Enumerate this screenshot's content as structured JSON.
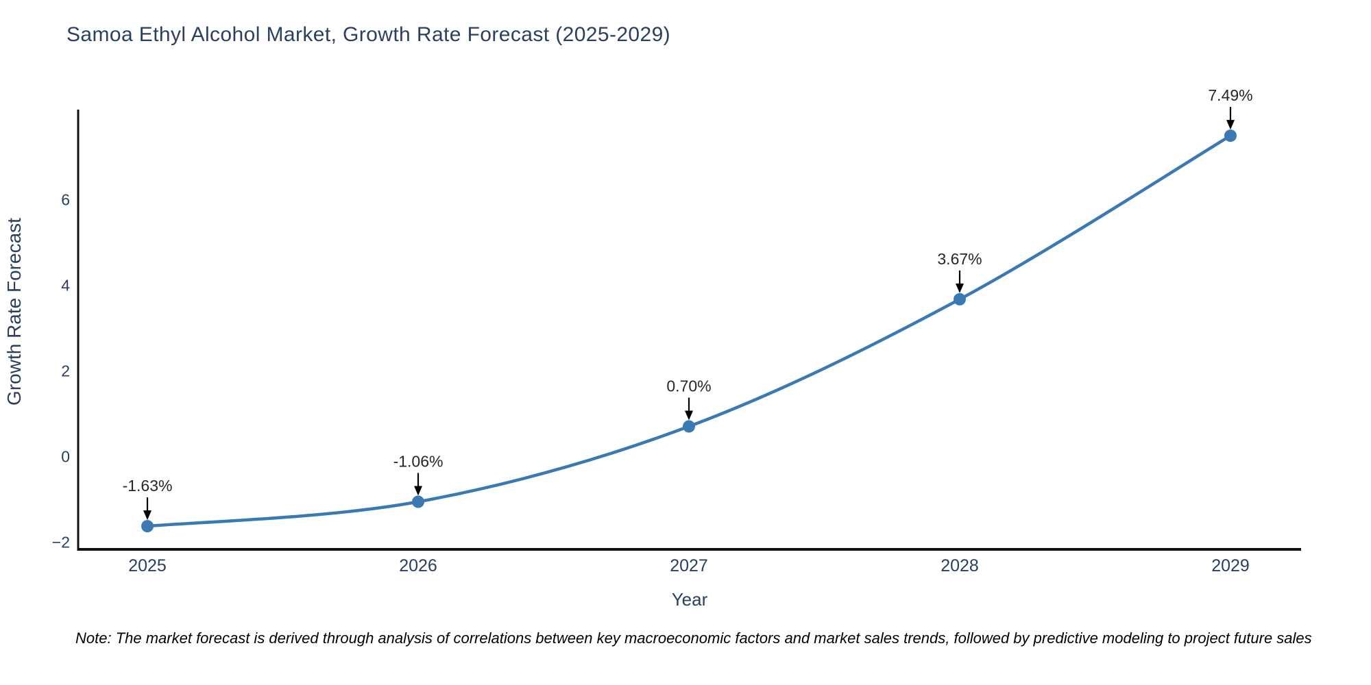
{
  "chart_data": {
    "type": "line",
    "line_shape": "spline",
    "title": "Samoa Ethyl Alcohol Market, Growth Rate Forecast (2025-2029)",
    "xlabel": "Year",
    "ylabel": "Growth Rate Forecast",
    "categories": [
      "2025",
      "2026",
      "2027",
      "2028",
      "2029"
    ],
    "series": [
      {
        "name": "Growth Rate Forecast",
        "values": [
          -1.63,
          -1.06,
          0.7,
          3.67,
          7.49
        ],
        "point_labels": [
          "-1.63%",
          "-1.06%",
          "0.70%",
          "3.67%",
          "7.49%"
        ]
      }
    ],
    "yticks": [
      -2,
      0,
      2,
      4,
      6
    ],
    "ylim": [
      -2.17,
      8.1
    ],
    "grid": false,
    "legend": false,
    "colors": {
      "line": "#3b79b3",
      "marker": "#3b79b3",
      "axis": "#111111",
      "tick_label": "#2a3f5f",
      "axis_title": "#2a3f5f",
      "annotation_text": "#262626",
      "annotation_arrow": "#000000",
      "title": "#2b405f"
    }
  },
  "note": {
    "text": "Note: The market forecast is derived through analysis of correlations between key macroeconomic factors and market sales trends, followed by predictive modeling to project future sales"
  }
}
